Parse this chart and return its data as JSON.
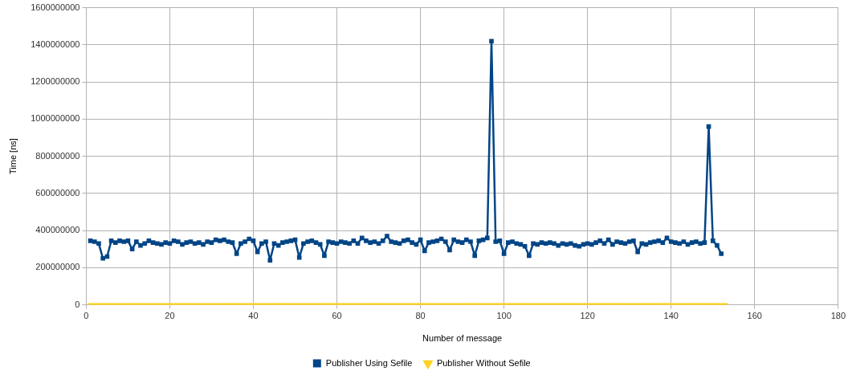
{
  "chart_data": {
    "type": "line",
    "xlabel": "Number of message",
    "ylabel": "Time [ns]",
    "xlim": [
      0,
      180
    ],
    "xticks": [
      0,
      20,
      40,
      60,
      80,
      100,
      120,
      140,
      160,
      180
    ],
    "ylim": [
      0,
      1600000000
    ],
    "yticks": [
      0,
      200000000,
      400000000,
      600000000,
      800000000,
      1000000000,
      1200000000,
      1400000000,
      1600000000
    ],
    "grid": true,
    "legend": "bottom",
    "line_style": "solid",
    "series": [
      {
        "name": "Publisher Using Sefile",
        "color": "#004586",
        "marker": "square",
        "x": [
          1,
          2,
          3,
          4,
          5,
          6,
          7,
          8,
          9,
          10,
          11,
          12,
          13,
          14,
          15,
          16,
          17,
          18,
          19,
          20,
          21,
          22,
          23,
          24,
          25,
          26,
          27,
          28,
          29,
          30,
          31,
          32,
          33,
          34,
          35,
          36,
          37,
          38,
          39,
          40,
          41,
          42,
          43,
          44,
          45,
          46,
          47,
          48,
          49,
          50,
          51,
          52,
          53,
          54,
          55,
          56,
          57,
          58,
          59,
          60,
          61,
          62,
          63,
          64,
          65,
          66,
          67,
          68,
          69,
          70,
          71,
          72,
          73,
          74,
          75,
          76,
          77,
          78,
          79,
          80,
          81,
          82,
          83,
          84,
          85,
          86,
          87,
          88,
          89,
          90,
          91,
          92,
          93,
          94,
          95,
          96,
          97,
          98,
          99,
          100,
          101,
          102,
          103,
          104,
          105,
          106,
          107,
          108,
          109,
          110,
          111,
          112,
          113,
          114,
          115,
          116,
          117,
          118,
          119,
          120,
          121,
          122,
          123,
          124,
          125,
          126,
          127,
          128,
          129,
          130,
          131,
          132,
          133,
          134,
          135,
          136,
          137,
          138,
          139,
          140,
          141,
          142,
          143,
          144,
          145,
          146,
          147,
          148,
          149,
          150,
          151,
          152
        ],
        "values": [
          345000000,
          340000000,
          330000000,
          250000000,
          260000000,
          345000000,
          335000000,
          345000000,
          340000000,
          345000000,
          300000000,
          340000000,
          320000000,
          330000000,
          345000000,
          335000000,
          330000000,
          325000000,
          335000000,
          330000000,
          345000000,
          340000000,
          325000000,
          335000000,
          340000000,
          330000000,
          335000000,
          325000000,
          340000000,
          335000000,
          350000000,
          345000000,
          350000000,
          340000000,
          335000000,
          275000000,
          330000000,
          340000000,
          355000000,
          345000000,
          285000000,
          330000000,
          340000000,
          240000000,
          330000000,
          320000000,
          335000000,
          340000000,
          345000000,
          350000000,
          255000000,
          330000000,
          340000000,
          345000000,
          335000000,
          325000000,
          265000000,
          340000000,
          335000000,
          330000000,
          340000000,
          335000000,
          330000000,
          345000000,
          330000000,
          360000000,
          345000000,
          335000000,
          340000000,
          330000000,
          345000000,
          370000000,
          340000000,
          335000000,
          330000000,
          345000000,
          350000000,
          335000000,
          325000000,
          350000000,
          290000000,
          335000000,
          340000000,
          345000000,
          355000000,
          340000000,
          295000000,
          350000000,
          340000000,
          335000000,
          350000000,
          340000000,
          265000000,
          345000000,
          350000000,
          360000000,
          1420000000,
          340000000,
          345000000,
          275000000,
          335000000,
          340000000,
          330000000,
          325000000,
          315000000,
          265000000,
          330000000,
          325000000,
          335000000,
          330000000,
          335000000,
          330000000,
          320000000,
          330000000,
          325000000,
          330000000,
          320000000,
          315000000,
          325000000,
          330000000,
          325000000,
          335000000,
          345000000,
          330000000,
          350000000,
          325000000,
          340000000,
          335000000,
          330000000,
          340000000,
          345000000,
          285000000,
          330000000,
          325000000,
          335000000,
          340000000,
          345000000,
          335000000,
          360000000,
          340000000,
          335000000,
          330000000,
          340000000,
          325000000,
          335000000,
          340000000,
          330000000,
          335000000,
          960000000,
          345000000,
          320000000,
          275000000
        ]
      },
      {
        "name": "Publisher Without Sefile",
        "color": "#ffd320",
        "marker": "triangle",
        "x": [
          1,
          2,
          3,
          4,
          5,
          6,
          7,
          8,
          9,
          10,
          11,
          12,
          13,
          14,
          15,
          16,
          17,
          18,
          19,
          20,
          21,
          22,
          23,
          24,
          25,
          26,
          27,
          28,
          29,
          30,
          31,
          32,
          33,
          34,
          35,
          36,
          37,
          38,
          39,
          40,
          41,
          42,
          43,
          44,
          45,
          46,
          47,
          48,
          49,
          50,
          51,
          52,
          53,
          54,
          55,
          56,
          57,
          58,
          59,
          60,
          61,
          62,
          63,
          64,
          65,
          66,
          67,
          68,
          69,
          70,
          71,
          72,
          73,
          74,
          75,
          76,
          77,
          78,
          79,
          80,
          81,
          82,
          83,
          84,
          85,
          86,
          87,
          88,
          89,
          90,
          91,
          92,
          93,
          94,
          95,
          96,
          97,
          98,
          99,
          100,
          101,
          102,
          103,
          104,
          105,
          106,
          107,
          108,
          109,
          110,
          111,
          112,
          113,
          114,
          115,
          116,
          117,
          118,
          119,
          120,
          121,
          122,
          123,
          124,
          125,
          126,
          127,
          128,
          129,
          130,
          131,
          132,
          133,
          134,
          135,
          136,
          137,
          138,
          139,
          140,
          141,
          142,
          143,
          144,
          145,
          146,
          147,
          148,
          149,
          150,
          151,
          152,
          153
        ],
        "values": [
          0,
          0,
          0,
          0,
          0,
          0,
          0,
          0,
          0,
          0,
          0,
          0,
          0,
          0,
          0,
          0,
          0,
          0,
          0,
          0,
          0,
          0,
          0,
          0,
          0,
          0,
          0,
          0,
          0,
          0,
          0,
          0,
          0,
          0,
          0,
          0,
          0,
          0,
          0,
          0,
          0,
          0,
          0,
          0,
          0,
          0,
          0,
          0,
          0,
          0,
          0,
          0,
          0,
          0,
          0,
          0,
          0,
          0,
          0,
          0,
          0,
          0,
          0,
          0,
          0,
          0,
          0,
          0,
          0,
          0,
          0,
          0,
          0,
          0,
          0,
          0,
          0,
          0,
          0,
          0,
          0,
          0,
          0,
          0,
          0,
          0,
          0,
          0,
          0,
          0,
          0,
          0,
          0,
          0,
          0,
          0,
          0,
          0,
          0,
          0,
          0,
          0,
          0,
          0,
          0,
          0,
          0,
          0,
          0,
          0,
          0,
          0,
          0,
          0,
          0,
          0,
          0,
          0,
          0,
          0,
          0,
          0,
          0,
          0,
          0,
          0,
          0,
          0,
          0,
          0,
          0,
          0,
          0,
          0,
          0,
          0,
          0,
          0,
          0,
          0,
          0,
          0,
          0,
          0,
          0,
          0,
          0,
          0,
          0,
          0,
          0,
          0,
          0
        ]
      }
    ]
  }
}
